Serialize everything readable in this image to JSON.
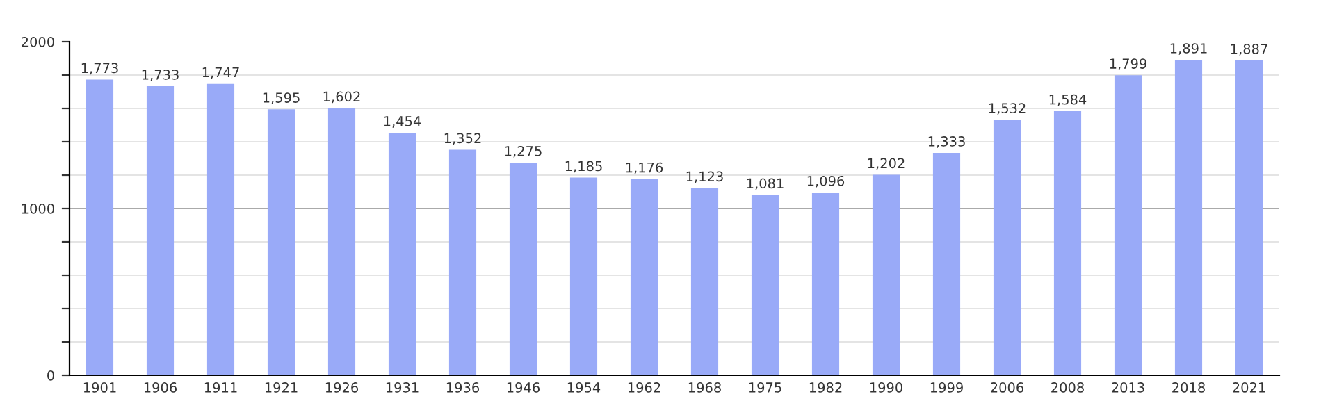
{
  "chart_data": {
    "type": "bar",
    "categories": [
      "1901",
      "1906",
      "1911",
      "1921",
      "1926",
      "1931",
      "1936",
      "1946",
      "1954",
      "1962",
      "1968",
      "1975",
      "1982",
      "1990",
      "1999",
      "2006",
      "2008",
      "2013",
      "2018",
      "2021"
    ],
    "values": [
      1773,
      1733,
      1747,
      1595,
      1602,
      1454,
      1352,
      1275,
      1185,
      1176,
      1123,
      1081,
      1096,
      1202,
      1333,
      1532,
      1584,
      1799,
      1891,
      1887
    ],
    "value_labels": [
      "1,773",
      "1,733",
      "1,747",
      "1,595",
      "1,602",
      "1,454",
      "1,352",
      "1,275",
      "1,185",
      "1,176",
      "1,123",
      "1,081",
      "1,096",
      "1,202",
      "1,333",
      "1,532",
      "1,584",
      "1,799",
      "1,891",
      "1,887"
    ],
    "color": "#99aaf8",
    "ylim": [
      0,
      2000
    ],
    "yticks": [
      0,
      {
        "value": 200,
        "label": null
      },
      {
        "value": 400,
        "label": null
      },
      {
        "value": 600,
        "label": null
      },
      {
        "value": 800,
        "label": null
      },
      1000,
      {
        "value": 1200,
        "label": null
      },
      {
        "value": 1400,
        "label": null
      },
      {
        "value": 1600,
        "label": null
      },
      {
        "value": 1800,
        "label": null
      },
      2000
    ],
    "grid": "y",
    "ref_lines": [
      {
        "axis": "y",
        "value": 1000,
        "color": "#aaaaaa"
      }
    ]
  }
}
